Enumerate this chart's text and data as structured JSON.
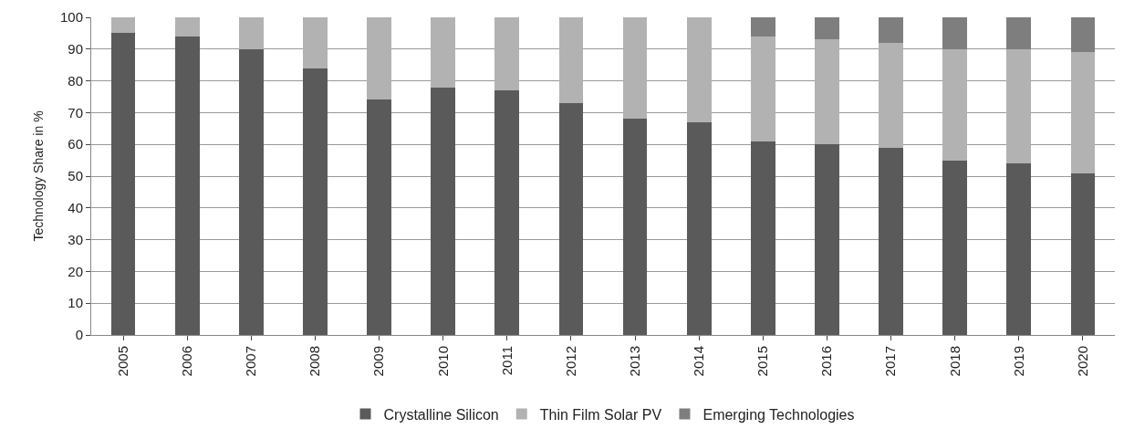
{
  "chart_data": {
    "type": "bar",
    "stacked": true,
    "ylabel": "Technology Share in %",
    "categories": [
      "2005",
      "2006",
      "2007",
      "2008",
      "2009",
      "2010",
      "2011",
      "2012",
      "2013",
      "2014",
      "2015",
      "2016",
      "2017",
      "2018",
      "2019",
      "2020"
    ],
    "series": [
      {
        "name": "Crystalline Silicon",
        "color": "#5a5a5a",
        "values": [
          95,
          94,
          90,
          84,
          74,
          78,
          77,
          73,
          68,
          67,
          61,
          60,
          59,
          55,
          54,
          51
        ]
      },
      {
        "name": "Thin Film Solar PV",
        "color": "#b2b2b2",
        "values": [
          5,
          6,
          10,
          16,
          26,
          22,
          23,
          27,
          32,
          33,
          33,
          33,
          33,
          35,
          36,
          38
        ]
      },
      {
        "name": "Emerging Technologies",
        "color": "#7e7e7e",
        "values": [
          0,
          0,
          0,
          0,
          0,
          0,
          0,
          0,
          0,
          0,
          6,
          7,
          8,
          10,
          10,
          11
        ]
      }
    ],
    "ylim": [
      0,
      100
    ],
    "yticks": [
      0,
      10,
      20,
      30,
      40,
      50,
      60,
      70,
      80,
      90,
      100
    ],
    "grid": "y",
    "legend": "bottom"
  }
}
